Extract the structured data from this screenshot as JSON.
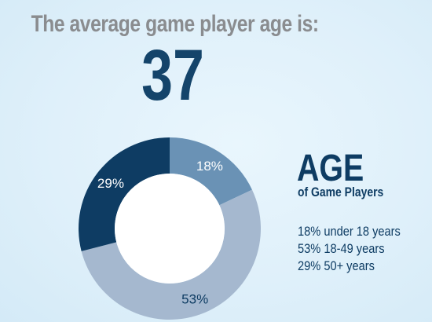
{
  "headline": "The average game player age is:",
  "average_age": "37",
  "legend": {
    "title": "AGE",
    "subtitle": "of Game Players",
    "items": [
      "18% under 18 years",
      "53% 18-49 years",
      "29% 50+ years"
    ]
  },
  "colors": {
    "headline": "#8a8c8f",
    "number": "#14446a",
    "legend_text": "#0e3c63"
  },
  "chart_data": {
    "type": "pie",
    "donut": true,
    "start": "top",
    "direction": "clockwise",
    "slices": [
      {
        "label": "18%",
        "value": 18,
        "category": "under 18 years",
        "color": "#6a92b5",
        "label_color": "#ffffff"
      },
      {
        "label": "53%",
        "value": 53,
        "category": "18-49 years",
        "color": "#a5b8cf",
        "label_color": "#0e3c63"
      },
      {
        "label": "29%",
        "value": 29,
        "category": "50+ years",
        "color": "#0e3c63",
        "label_color": "#ffffff"
      }
    ]
  }
}
